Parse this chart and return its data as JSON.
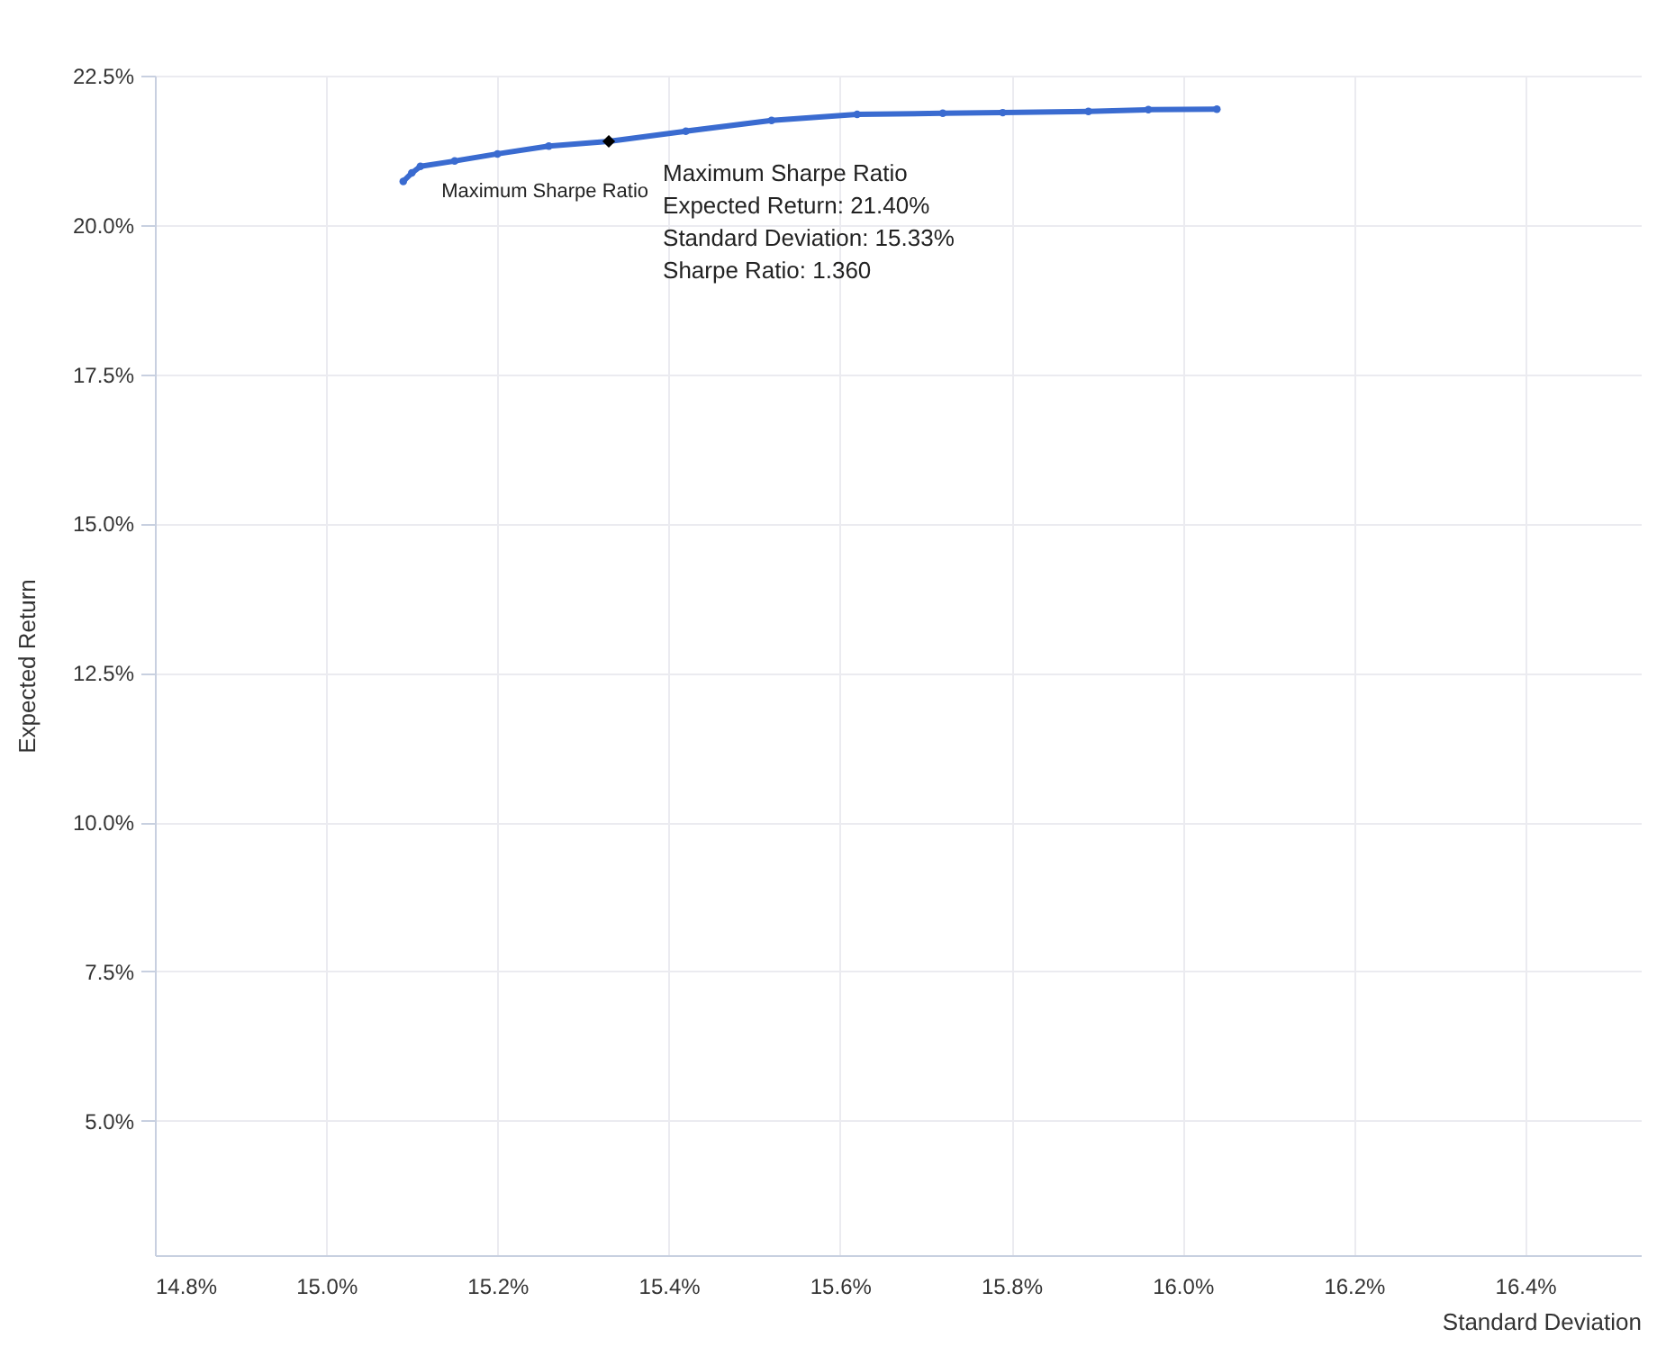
{
  "chart_data": {
    "type": "line",
    "xlabel": "Standard Deviation",
    "ylabel": "Expected Return",
    "xlim": [
      14.8,
      16.535
    ],
    "ylim": [
      2.75,
      22.5
    ],
    "xticks": [
      {
        "value": 14.8,
        "label": "14.8%"
      },
      {
        "value": 15.0,
        "label": "15.0%"
      },
      {
        "value": 15.2,
        "label": "15.2%"
      },
      {
        "value": 15.4,
        "label": "15.4%"
      },
      {
        "value": 15.6,
        "label": "15.6%"
      },
      {
        "value": 15.8,
        "label": "15.8%"
      },
      {
        "value": 16.0,
        "label": "16.0%"
      },
      {
        "value": 16.2,
        "label": "16.2%"
      },
      {
        "value": 16.4,
        "label": "16.4%"
      }
    ],
    "yticks": [
      {
        "value": 5,
        "label": "5.0%"
      },
      {
        "value": 7.5,
        "label": "7.5%"
      },
      {
        "value": 10,
        "label": "10.0%"
      },
      {
        "value": 12.5,
        "label": "12.5%"
      },
      {
        "value": 15,
        "label": "15.0%"
      },
      {
        "value": 17.5,
        "label": "17.5%"
      },
      {
        "value": 20,
        "label": "20.0%"
      },
      {
        "value": 22.5,
        "label": "22.5%"
      }
    ],
    "grid": true,
    "series": [
      {
        "marker": "circle",
        "color": "#3a6bd0",
        "x": [
          15.09,
          15.1,
          15.11,
          15.15,
          15.2,
          15.26,
          15.33,
          15.42,
          15.52,
          15.62,
          15.72,
          15.79,
          15.89,
          15.96,
          16.04
        ],
        "values": [
          20.73,
          20.87,
          20.98,
          21.07,
          21.19,
          21.32,
          21.4,
          21.57,
          21.75,
          21.85,
          21.87,
          21.88,
          21.9,
          21.93,
          21.94
        ]
      },
      {
        "type": "scatter",
        "marker": "diamond",
        "color": "#000000",
        "x": [
          15.33
        ],
        "values": [
          21.4
        ]
      }
    ],
    "annotations": [
      {
        "text": "Maximum Sharpe Ratio",
        "x": 15.33,
        "y": 21.4
      },
      {
        "text": "Maximum Sharpe Ratio\nExpected Return: 21.40%\nStandard Deviation: 15.33%\nSharpe Ratio: 1.360",
        "x": 15.33,
        "y": 21.4
      }
    ]
  }
}
